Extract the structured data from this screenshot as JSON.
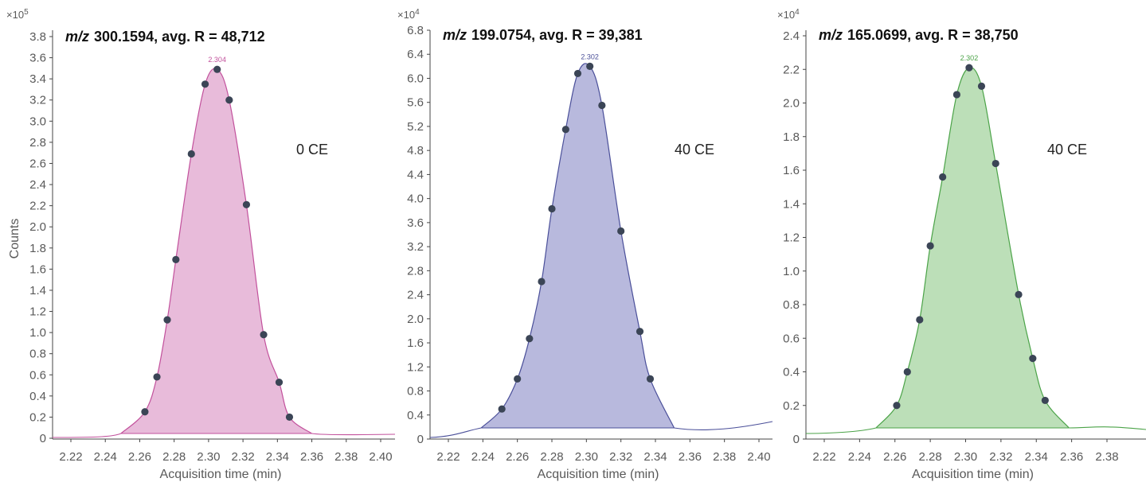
{
  "chart_data": [
    {
      "type": "area",
      "title_italic": "m/z",
      "title": "300.1594, avg. R = 48,712",
      "annotation": "0 CE",
      "multiplier_base": "×10",
      "multiplier_exp": "5",
      "ylabel": "Counts",
      "xlabel": "Acquisition time (min)",
      "xlim": [
        2.21,
        2.405
      ],
      "ylim": [
        0,
        3.82
      ],
      "x_ticks": [
        "2.22",
        "2.24",
        "2.26",
        "2.28",
        "2.30",
        "2.32",
        "2.34",
        "2.36",
        "2.38",
        "2.40"
      ],
      "y_ticks": [
        "0",
        "0.2",
        "0.4",
        "0.6",
        "0.8",
        "1.0",
        "1.2",
        "1.4",
        "1.6",
        "1.8",
        "2.0",
        "2.2",
        "2.4",
        "2.6",
        "2.8",
        "3.0",
        "3.2",
        "3.4",
        "3.6",
        "3.8"
      ],
      "apex_label": "2.304",
      "color": "#c2519c",
      "fill": "#e8bbda",
      "points": [
        {
          "x": 2.263,
          "y": 0.25
        },
        {
          "x": 2.27,
          "y": 0.58
        },
        {
          "x": 2.276,
          "y": 1.12
        },
        {
          "x": 2.281,
          "y": 1.69
        },
        {
          "x": 2.29,
          "y": 2.69
        },
        {
          "x": 2.298,
          "y": 3.35
        },
        {
          "x": 2.305,
          "y": 3.49
        },
        {
          "x": 2.312,
          "y": 3.2
        },
        {
          "x": 2.322,
          "y": 2.21
        },
        {
          "x": 2.332,
          "y": 0.98
        },
        {
          "x": 2.341,
          "y": 0.53
        },
        {
          "x": 2.347,
          "y": 0.2
        }
      ]
    },
    {
      "type": "area",
      "title_italic": "m/z",
      "title": "199.0754, avg. R = 39,381",
      "annotation": "40 CE",
      "multiplier_base": "×10",
      "multiplier_exp": "4",
      "ylabel": "",
      "xlabel": "Acquisition time (min)",
      "xlim": [
        2.205,
        2.405
      ],
      "ylim": [
        0,
        6.8
      ],
      "x_ticks": [
        "2.22",
        "2.24",
        "2.26",
        "2.28",
        "2.30",
        "2.32",
        "2.34",
        "2.36",
        "2.38",
        "2.40"
      ],
      "y_ticks": [
        "0",
        "0.4",
        "0.8",
        "1.2",
        "1.6",
        "2.0",
        "2.4",
        "2.8",
        "3.2",
        "3.6",
        "4.0",
        "4.4",
        "4.8",
        "5.2",
        "5.6",
        "6.0",
        "6.4",
        "6.8"
      ],
      "apex_label": "2.302",
      "color": "#4a4f99",
      "fill": "#b8b9dd",
      "points": [
        {
          "x": 2.251,
          "y": 0.5
        },
        {
          "x": 2.26,
          "y": 1.0
        },
        {
          "x": 2.267,
          "y": 1.67
        },
        {
          "x": 2.274,
          "y": 2.62
        },
        {
          "x": 2.28,
          "y": 3.83
        },
        {
          "x": 2.288,
          "y": 5.15
        },
        {
          "x": 2.295,
          "y": 6.08
        },
        {
          "x": 2.302,
          "y": 6.2
        },
        {
          "x": 2.309,
          "y": 5.55
        },
        {
          "x": 2.32,
          "y": 3.46
        },
        {
          "x": 2.331,
          "y": 1.79
        },
        {
          "x": 2.337,
          "y": 1.0
        }
      ]
    },
    {
      "type": "area",
      "title_italic": "m/z",
      "title": "165.0699, avg. R = 38,750",
      "annotation": "40 CE",
      "multiplier_base": "×10",
      "multiplier_exp": "4",
      "ylabel": "",
      "xlabel": "Acquisition time (min)",
      "xlim": [
        2.206,
        2.4
      ],
      "ylim": [
        0,
        2.45
      ],
      "x_ticks": [
        "2.22",
        "2.24",
        "2.26",
        "2.28",
        "2.30",
        "2.32",
        "2.34",
        "2.36",
        "2.38"
      ],
      "y_ticks": [
        "0",
        "0.2",
        "0.4",
        "0.6",
        "0.8",
        "1.0",
        "1.2",
        "1.4",
        "1.6",
        "1.8",
        "2.0",
        "2.2",
        "2.4"
      ],
      "apex_label": "2.302",
      "color": "#4ba348",
      "fill": "#bcdfb8",
      "points": [
        {
          "x": 2.261,
          "y": 0.2
        },
        {
          "x": 2.267,
          "y": 0.4
        },
        {
          "x": 2.274,
          "y": 0.71
        },
        {
          "x": 2.28,
          "y": 1.15
        },
        {
          "x": 2.287,
          "y": 1.56
        },
        {
          "x": 2.295,
          "y": 2.05
        },
        {
          "x": 2.302,
          "y": 2.21
        },
        {
          "x": 2.309,
          "y": 2.1
        },
        {
          "x": 2.317,
          "y": 1.64
        },
        {
          "x": 2.33,
          "y": 0.86
        },
        {
          "x": 2.338,
          "y": 0.48
        },
        {
          "x": 2.345,
          "y": 0.23
        }
      ]
    }
  ]
}
